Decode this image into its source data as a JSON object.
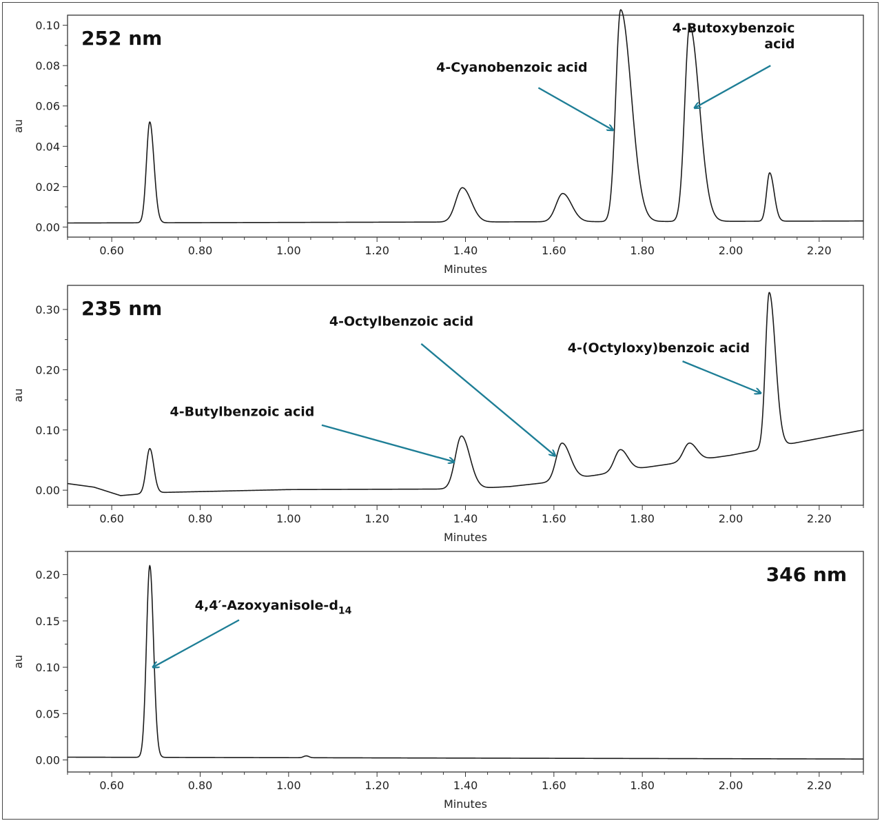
{
  "chart_data": [
    {
      "type": "line",
      "title": "252 nm",
      "xlabel": "Minutes",
      "ylabel": "au",
      "xlim": [
        0.5,
        2.3
      ],
      "ylim": [
        -0.005,
        0.105
      ],
      "x_ticks": [
        "0.60",
        "0.80",
        "1.00",
        "1.20",
        "1.40",
        "1.60",
        "1.80",
        "2.00",
        "2.20"
      ],
      "y_ticks": [
        "0.00",
        "0.02",
        "0.04",
        "0.06",
        "0.08",
        "0.10"
      ],
      "baseline": {
        "x": [
          0.5,
          2.3
        ],
        "y": [
          0.002,
          0.003
        ]
      },
      "peaks": [
        {
          "rt": 0.686,
          "height": 0.05,
          "w1": 0.0075,
          "w2": 0.0095
        },
        {
          "rt": 1.393,
          "height": 0.017,
          "w1": 0.015,
          "w2": 0.02
        },
        {
          "rt": 1.62,
          "height": 0.014,
          "w1": 0.015,
          "w2": 0.02
        },
        {
          "rt": 1.751,
          "height": 0.105,
          "w1": 0.011,
          "w2": 0.024
        },
        {
          "rt": 1.907,
          "height": 0.097,
          "w1": 0.011,
          "w2": 0.022
        },
        {
          "rt": 2.088,
          "height": 0.024,
          "w1": 0.007,
          "w2": 0.01
        }
      ],
      "annotations": [
        {
          "lines": [
            "4-Cyanobenzoic acid"
          ],
          "align": "middle",
          "text_x": 1.505,
          "text_y": 0.077,
          "arrow_from": [
            1.565,
            0.069
          ],
          "arrow_to": [
            1.734,
            0.048
          ]
        },
        {
          "lines": [
            "4-Butoxybenzoic",
            "acid"
          ],
          "align": "end",
          "text_x": 2.145,
          "text_y": 0.0965,
          "arrow_from": [
            2.09,
            0.08
          ],
          "arrow_to": [
            1.918,
            0.059
          ]
        }
      ],
      "wavelength_position": "top-left"
    },
    {
      "type": "line",
      "title": "235 nm",
      "xlabel": "Minutes",
      "ylabel": "au",
      "xlim": [
        0.5,
        2.3
      ],
      "ylim": [
        -0.025,
        0.34
      ],
      "x_ticks": [
        "0.60",
        "0.80",
        "1.00",
        "1.20",
        "1.40",
        "1.60",
        "1.80",
        "2.00",
        "2.20"
      ],
      "y_ticks": [
        "0.00",
        "0.10",
        "0.20",
        "0.30"
      ],
      "baseline": {
        "x": [
          0.5,
          0.56,
          0.62,
          0.7,
          1.0,
          1.4,
          1.5,
          1.6,
          1.8,
          2.0,
          2.3
        ],
        "y": [
          0.011,
          0.005,
          -0.009,
          -0.004,
          0.001,
          0.002,
          0.006,
          0.014,
          0.037,
          0.058,
          0.1
        ]
      },
      "peaks": [
        {
          "rt": 0.686,
          "height": 0.074,
          "w1": 0.008,
          "w2": 0.009
        },
        {
          "rt": 1.391,
          "height": 0.088,
          "w1": 0.014,
          "w2": 0.019
        },
        {
          "rt": 1.618,
          "height": 0.062,
          "w1": 0.013,
          "w2": 0.019
        },
        {
          "rt": 1.75,
          "height": 0.036,
          "w1": 0.013,
          "w2": 0.017
        },
        {
          "rt": 1.906,
          "height": 0.03,
          "w1": 0.013,
          "w2": 0.017
        },
        {
          "rt": 2.087,
          "height": 0.258,
          "w1": 0.0085,
          "w2": 0.014
        }
      ],
      "annotations": [
        {
          "lines": [
            "4-Butylbenzoic acid"
          ],
          "align": "middle",
          "text_x": 0.895,
          "text_y": 0.123,
          "arrow_from": [
            1.075,
            0.108
          ],
          "arrow_to": [
            1.375,
            0.047
          ]
        },
        {
          "lines": [
            "4-Octylbenzoic acid"
          ],
          "align": "middle",
          "text_x": 1.255,
          "text_y": 0.273,
          "arrow_from": [
            1.3,
            0.243
          ],
          "arrow_to": [
            1.603,
            0.057
          ]
        },
        {
          "lines": [
            "4-(Octyloxy)benzoic acid"
          ],
          "align": "middle",
          "text_x": 1.837,
          "text_y": 0.229,
          "arrow_from": [
            1.891,
            0.214
          ],
          "arrow_to": [
            2.068,
            0.161
          ]
        }
      ],
      "wavelength_position": "top-left"
    },
    {
      "type": "line",
      "title": "346 nm",
      "xlabel": "Minutes",
      "ylabel": "au",
      "xlim": [
        0.5,
        2.3
      ],
      "ylim": [
        -0.013,
        0.225
      ],
      "x_ticks": [
        "0.60",
        "0.80",
        "1.00",
        "1.20",
        "1.40",
        "1.60",
        "1.80",
        "2.00",
        "2.20"
      ],
      "y_ticks": [
        "0.00",
        "0.05",
        "0.10",
        "0.15",
        "0.20"
      ],
      "baseline": {
        "x": [
          0.5,
          2.3
        ],
        "y": [
          0.003,
          0.001
        ]
      },
      "peaks": [
        {
          "rt": 0.686,
          "height": 0.207,
          "w1": 0.0075,
          "w2": 0.0085
        },
        {
          "rt": 1.04,
          "height": 0.002,
          "w1": 0.006,
          "w2": 0.006
        }
      ],
      "annotations": [
        {
          "lines": [
            "4,4′-Azoxyanisole-d"
          ],
          "sub": "14",
          "align": "start",
          "text_x": 0.788,
          "text_y": 0.162,
          "arrow_from": [
            0.888,
            0.151
          ],
          "arrow_to": [
            0.693,
            0.1
          ]
        }
      ],
      "wavelength_position": "top-right"
    }
  ],
  "colors": {
    "trace": "#1a1a1a",
    "arrow": "#1e7e96",
    "axis": "#333333"
  }
}
